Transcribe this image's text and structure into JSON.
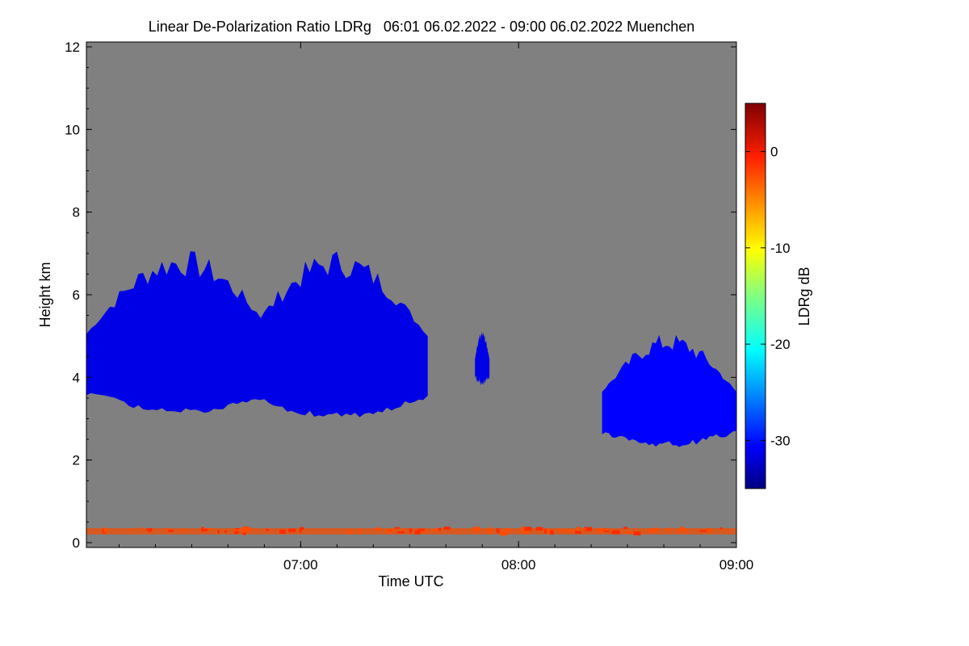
{
  "chart_data": {
    "type": "heatmap",
    "title": "Linear De-Polarization Ratio LDRg   06:01 06.02.2022 - 09:00 06.02.2022 Muenchen",
    "xlabel": "Time UTC",
    "ylabel": "Height km",
    "x_range": [
      "06:01",
      "09:00"
    ],
    "ylim": [
      0,
      12
    ],
    "x_ticks": [
      {
        "value": "07:00",
        "label": "07:00"
      },
      {
        "value": "08:00",
        "label": "08:00"
      },
      {
        "value": "09:00",
        "label": "09:00"
      }
    ],
    "y_ticks": [
      0,
      2,
      4,
      6,
      8,
      10,
      12
    ],
    "background_color": "#808080",
    "colorbar": {
      "label": "LDRg dB",
      "range": [
        -35,
        5
      ],
      "ticks": [
        0,
        -10,
        -20,
        -30
      ],
      "colormap": "jet"
    },
    "features": [
      {
        "name": "cloud layer 1",
        "time_start": "06:01",
        "time_end": "06:53",
        "base_km": 3.1,
        "top_km": 7.0,
        "ldr_db": -31
      },
      {
        "name": "cloud layer 2",
        "time_start": "06:45",
        "time_end": "07:35",
        "base_km": 3.0,
        "top_km": 7.0,
        "ldr_db": -31
      },
      {
        "name": "cloud fragment",
        "time_start": "07:48",
        "time_end": "07:52",
        "base_km": 3.8,
        "top_km": 5.1,
        "ldr_db": -31
      },
      {
        "name": "cloud layer 3",
        "time_start": "08:23",
        "time_end": "09:00",
        "base_km": 2.3,
        "top_km": 5.0,
        "ldr_db": -30
      },
      {
        "name": "near-surface aerosol",
        "time_start": "06:01",
        "time_end": "09:00",
        "base_km": 0.2,
        "top_km": 0.35,
        "ldr_db": -3
      }
    ]
  }
}
